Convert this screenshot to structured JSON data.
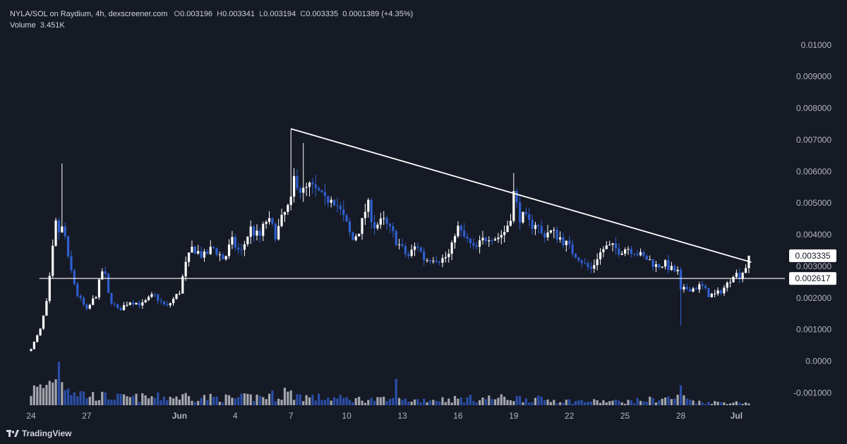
{
  "header": {
    "symbol": "NYLA/SOL on Raydium, 4h, dexscreener.com",
    "open_label": "O",
    "open": "0.003196",
    "high_label": "H",
    "high": "0.003341",
    "low_label": "L",
    "low": "0.003194",
    "close_label": "C",
    "close": "0.003335",
    "change": "0.0001389 (+4.35%)",
    "volume_label": "Volume",
    "volume": "3.451K"
  },
  "branding": {
    "name": "TradingView",
    "icon": "tradingview-logo-icon"
  },
  "colors": {
    "background": "#161a25",
    "up": "#ffffff",
    "down": "#2f5fd0",
    "volume_up": "#a3a6ad",
    "volume_down": "#2b4fa8",
    "lines": "#ffffff"
  },
  "chart_data": {
    "type": "candlestick",
    "symbol": "NYLA/SOL",
    "timeframe": "4h",
    "y_axis_ticks": [
      "0.01000",
      "0.009000",
      "0.008000",
      "0.007000",
      "0.006000",
      "0.005000",
      "0.004000",
      "0.003000",
      "0.002000",
      "0.001000",
      "0.0000",
      "-0.001000"
    ],
    "ylim": [
      -0.00117,
      0.01062
    ],
    "x_axis_ticks": [
      {
        "label": "24",
        "day": 0
      },
      {
        "label": "27",
        "day": 3
      },
      {
        "label": "Jun",
        "day": 8
      },
      {
        "label": "4",
        "day": 11
      },
      {
        "label": "7",
        "day": 14
      },
      {
        "label": "10",
        "day": 17
      },
      {
        "label": "13",
        "day": 20
      },
      {
        "label": "16",
        "day": 23
      },
      {
        "label": "19",
        "day": 26
      },
      {
        "label": "22",
        "day": 29
      },
      {
        "label": "25",
        "day": 32
      },
      {
        "label": "28",
        "day": 35
      },
      {
        "label": "Jul",
        "day": 38
      }
    ],
    "price_labels": [
      {
        "value": 0.003335,
        "text": "0.003335"
      },
      {
        "value": 0.002617,
        "text": "0.002617"
      }
    ],
    "annotations": [
      {
        "type": "horizontal_line",
        "value": 0.002617,
        "from_day": 0.45,
        "to_day": 38.6
      },
      {
        "type": "trend_line",
        "from": {
          "day": 14.0,
          "price": 0.00735
        },
        "to": {
          "day": 38.8,
          "price": 0.00313
        }
      }
    ],
    "close_keypoints": [
      [
        0.0,
        0.0004
      ],
      [
        0.5,
        0.001
      ],
      [
        0.9,
        0.002
      ],
      [
        1.1,
        0.0032
      ],
      [
        1.35,
        0.0044
      ],
      [
        1.55,
        0.004
      ],
      [
        1.75,
        0.0043
      ],
      [
        2.0,
        0.0032
      ],
      [
        2.5,
        0.0021
      ],
      [
        3.0,
        0.0016
      ],
      [
        3.5,
        0.0021
      ],
      [
        3.9,
        0.003
      ],
      [
        4.2,
        0.002
      ],
      [
        4.7,
        0.0016
      ],
      [
        5.3,
        0.0019
      ],
      [
        6.0,
        0.0018
      ],
      [
        6.6,
        0.0021
      ],
      [
        7.3,
        0.0017
      ],
      [
        8.0,
        0.0022
      ],
      [
        8.3,
        0.003
      ],
      [
        8.7,
        0.0036
      ],
      [
        9.3,
        0.0033
      ],
      [
        9.8,
        0.0036
      ],
      [
        10.4,
        0.0032
      ],
      [
        10.8,
        0.0038
      ],
      [
        11.3,
        0.0034
      ],
      [
        11.8,
        0.0042
      ],
      [
        12.3,
        0.0039
      ],
      [
        12.7,
        0.0045
      ],
      [
        13.2,
        0.004
      ],
      [
        13.6,
        0.0046
      ],
      [
        14.0,
        0.005
      ],
      [
        14.2,
        0.0059
      ],
      [
        14.6,
        0.0053
      ],
      [
        15.0,
        0.0055
      ],
      [
        15.5,
        0.0053
      ],
      [
        15.8,
        0.005
      ],
      [
        16.2,
        0.0053
      ],
      [
        16.6,
        0.0048
      ],
      [
        17.0,
        0.0043
      ],
      [
        17.3,
        0.0038
      ],
      [
        17.8,
        0.0043
      ],
      [
        18.1,
        0.005
      ],
      [
        18.5,
        0.0043
      ],
      [
        19.0,
        0.0044
      ],
      [
        19.5,
        0.004
      ],
      [
        19.9,
        0.0036
      ],
      [
        20.3,
        0.0033
      ],
      [
        20.8,
        0.0037
      ],
      [
        21.2,
        0.0032
      ],
      [
        21.7,
        0.0033
      ],
      [
        22.1,
        0.0032
      ],
      [
        22.6,
        0.0034
      ],
      [
        22.9,
        0.0043
      ],
      [
        23.2,
        0.004
      ],
      [
        23.5,
        0.0038
      ],
      [
        23.9,
        0.0035
      ],
      [
        24.3,
        0.0038
      ],
      [
        24.7,
        0.004
      ],
      [
        25.1,
        0.0039
      ],
      [
        25.5,
        0.0041
      ],
      [
        25.8,
        0.0045
      ],
      [
        26.0,
        0.0053
      ],
      [
        26.3,
        0.0046
      ],
      [
        26.6,
        0.0045
      ],
      [
        26.9,
        0.0043
      ],
      [
        27.2,
        0.0044
      ],
      [
        27.5,
        0.004
      ],
      [
        27.9,
        0.0041
      ],
      [
        28.3,
        0.004
      ],
      [
        28.7,
        0.0038
      ],
      [
        29.1,
        0.0035
      ],
      [
        29.5,
        0.0033
      ],
      [
        29.9,
        0.003
      ],
      [
        30.2,
        0.0029
      ],
      [
        30.5,
        0.0033
      ],
      [
        30.9,
        0.0036
      ],
      [
        31.3,
        0.0036
      ],
      [
        31.7,
        0.0035
      ],
      [
        32.1,
        0.0036
      ],
      [
        32.5,
        0.0035
      ],
      [
        32.9,
        0.0033
      ],
      [
        33.3,
        0.0032
      ],
      [
        33.7,
        0.003
      ],
      [
        34.1,
        0.0031
      ],
      [
        34.5,
        0.0029
      ],
      [
        34.9,
        0.0028
      ],
      [
        35.0,
        0.0022
      ],
      [
        35.3,
        0.0023
      ],
      [
        35.7,
        0.0023
      ],
      [
        36.1,
        0.0024
      ],
      [
        36.5,
        0.0021
      ],
      [
        36.9,
        0.0021
      ],
      [
        37.3,
        0.0023
      ],
      [
        37.6,
        0.0025
      ],
      [
        37.8,
        0.0028
      ],
      [
        38.2,
        0.0027
      ],
      [
        38.5,
        0.003
      ],
      [
        38.7,
        0.003335
      ]
    ],
    "notable_wicks": [
      {
        "day": 1.75,
        "high": 0.00625
      },
      {
        "day": 14.0,
        "high": 0.00735
      },
      {
        "day": 14.7,
        "high": 0.0069
      },
      {
        "day": 26.0,
        "high": 0.00595
      },
      {
        "day": 35.0,
        "low": 0.00112
      }
    ],
    "volume_scale_k": 15,
    "volume_keypoints": [
      [
        0.0,
        5.5
      ],
      [
        0.6,
        6.5
      ],
      [
        1.0,
        8.5
      ],
      [
        1.5,
        15.5
      ],
      [
        1.8,
        9.5
      ],
      [
        2.3,
        5.5
      ],
      [
        3.0,
        3.8
      ],
      [
        5.0,
        2.8
      ],
      [
        8.0,
        3.2
      ],
      [
        11.0,
        2.6
      ],
      [
        14.0,
        4.2
      ],
      [
        15.0,
        3.0
      ],
      [
        17.0,
        2.4
      ],
      [
        20.0,
        1.9
      ],
      [
        23.0,
        2.4
      ],
      [
        26.0,
        2.8
      ],
      [
        29.0,
        1.6
      ],
      [
        32.0,
        1.4
      ],
      [
        35.0,
        3.0
      ],
      [
        36.0,
        1.2
      ],
      [
        38.7,
        1.0
      ]
    ],
    "volume_spikes": [
      {
        "day": 8.3,
        "value": 4.2
      },
      {
        "day": 13.7,
        "value": 6.0
      },
      {
        "day": 19.6,
        "value": 9.0
      },
      {
        "day": 35.0,
        "value": 6.8
      }
    ]
  }
}
